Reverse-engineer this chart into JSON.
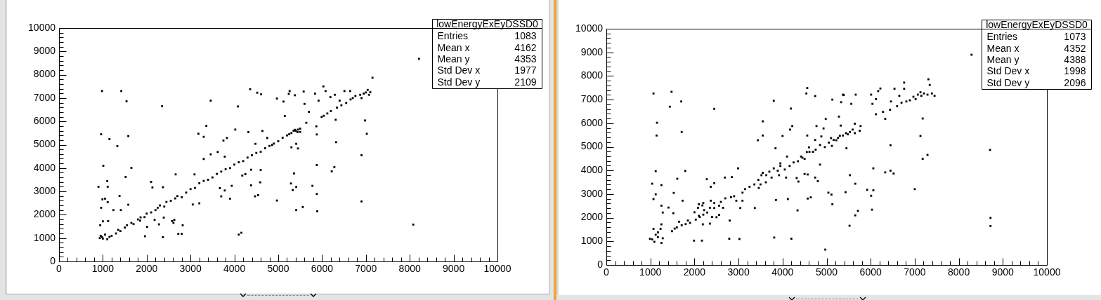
{
  "chart_data": [
    {
      "type": "scatter",
      "color": "#000000",
      "marker": "square",
      "annotations": [
        "lowEnergyExEyDSSD0",
        "Entries 1083",
        "Mean x 4162",
        "Mean y 4353",
        "Std Dev x 1977",
        "Std Dev y 2109"
      ],
      "xlim": [
        0,
        10000
      ],
      "ylim": [
        0,
        10000
      ],
      "xticks": [
        0,
        {
          "value": 200,
          "label": null
        },
        {
          "value": 400,
          "label": null
        },
        {
          "value": 600,
          "label": null
        },
        {
          "value": 800,
          "label": null
        },
        1000,
        {
          "value": 1200,
          "label": null
        },
        {
          "value": 1400,
          "label": null
        },
        {
          "value": 1600,
          "label": null
        },
        {
          "value": 1800,
          "label": null
        },
        2000,
        {
          "value": 2200,
          "label": null
        },
        {
          "value": 2400,
          "label": null
        },
        {
          "value": 2600,
          "label": null
        },
        {
          "value": 2800,
          "label": null
        },
        3000,
        {
          "value": 3200,
          "label": null
        },
        {
          "value": 3400,
          "label": null
        },
        {
          "value": 3600,
          "label": null
        },
        {
          "value": 3800,
          "label": null
        },
        4000,
        {
          "value": 4200,
          "label": null
        },
        {
          "value": 4400,
          "label": null
        },
        {
          "value": 4600,
          "label": null
        },
        {
          "value": 4800,
          "label": null
        },
        5000,
        {
          "value": 5200,
          "label": null
        },
        {
          "value": 5400,
          "label": null
        },
        {
          "value": 5600,
          "label": null
        },
        {
          "value": 5800,
          "label": null
        },
        6000,
        {
          "value": 6200,
          "label": null
        },
        {
          "value": 6400,
          "label": null
        },
        {
          "value": 6600,
          "label": null
        },
        {
          "value": 6800,
          "label": null
        },
        7000,
        {
          "value": 7200,
          "label": null
        },
        {
          "value": 7400,
          "label": null
        },
        {
          "value": 7600,
          "label": null
        },
        {
          "value": 7800,
          "label": null
        },
        8000,
        {
          "value": 8200,
          "label": null
        },
        {
          "value": 8400,
          "label": null
        },
        {
          "value": 8600,
          "label": null
        },
        {
          "value": 8800,
          "label": null
        },
        9000,
        {
          "value": 9200,
          "label": null
        },
        {
          "value": 9400,
          "label": null
        },
        {
          "value": 9600,
          "label": null
        },
        {
          "value": 9800,
          "label": null
        },
        10000
      ],
      "yticks": [
        0,
        {
          "value": 200,
          "label": null
        },
        {
          "value": 400,
          "label": null
        },
        {
          "value": 600,
          "label": null
        },
        {
          "value": 800,
          "label": null
        },
        1000,
        {
          "value": 1200,
          "label": null
        },
        {
          "value": 1400,
          "label": null
        },
        {
          "value": 1600,
          "label": null
        },
        {
          "value": 1800,
          "label": null
        },
        2000,
        {
          "value": 2200,
          "label": null
        },
        {
          "value": 2400,
          "label": null
        },
        {
          "value": 2600,
          "label": null
        },
        {
          "value": 2800,
          "label": null
        },
        3000,
        {
          "value": 3200,
          "label": null
        },
        {
          "value": 3400,
          "label": null
        },
        {
          "value": 3600,
          "label": null
        },
        {
          "value": 3800,
          "label": null
        },
        4000,
        {
          "value": 4200,
          "label": null
        },
        {
          "value": 4400,
          "label": null
        },
        {
          "value": 4600,
          "label": null
        },
        {
          "value": 4800,
          "label": null
        },
        5000,
        {
          "value": 5200,
          "label": null
        },
        {
          "value": 5400,
          "label": null
        },
        {
          "value": 5600,
          "label": null
        },
        {
          "value": 5800,
          "label": null
        },
        6000,
        {
          "value": 6200,
          "label": null
        },
        {
          "value": 6400,
          "label": null
        },
        {
          "value": 6600,
          "label": null
        },
        {
          "value": 6800,
          "label": null
        },
        7000,
        {
          "value": 7200,
          "label": null
        },
        {
          "value": 7400,
          "label": null
        },
        {
          "value": 7600,
          "label": null
        },
        {
          "value": 7800,
          "label": null
        },
        8000,
        {
          "value": 8200,
          "label": null
        },
        {
          "value": 8400,
          "label": null
        },
        {
          "value": 8600,
          "label": null
        },
        {
          "value": 8800,
          "label": null
        },
        9000,
        {
          "value": 9200,
          "label": null
        },
        {
          "value": 9400,
          "label": null
        },
        {
          "value": 9600,
          "label": null
        },
        {
          "value": 9800,
          "label": null
        },
        10000
      ],
      "x": [
        980,
        1420,
        1540,
        2350,
        960,
        1580,
        1150,
        1330,
        1010,
        1650,
        1520,
        1100,
        2100,
        2130,
        900,
        1110,
        1380,
        990,
        1050,
        1110,
        960,
        1240,
        1580,
        1410,
        940,
        1000,
        1120,
        2370,
        2800,
        2720,
        1960,
        2580,
        2610,
        2820,
        4100,
        4160,
        4970,
        4470,
        4540,
        3900,
        3700,
        3050,
        3200,
        5330,
        5290,
        5360,
        4970,
        5120,
        4360,
        4520,
        4610,
        5240,
        4080,
        5150,
        3460,
        3360,
        3180,
        3300,
        2660,
        3090,
        2370,
        4380,
        4600,
        4180,
        4250,
        4380,
        4590,
        4020,
        3750,
        3830,
        930,
        950,
        980,
        1000,
        1050,
        1100,
        1150,
        1200,
        1300,
        1350,
        1400,
        1500,
        1550,
        1650,
        1700,
        1800,
        1850,
        1950,
        2000,
        2100,
        2200,
        2250,
        2300,
        2400,
        2450,
        2550,
        2650,
        2700,
        2800,
        2900,
        3000,
        3100,
        3200,
        3300,
        3400,
        3500,
        3600,
        3700,
        3800,
        3900,
        4000,
        4100,
        4200,
        4300,
        4400,
        4500,
        4600,
        4700,
        4800,
        4900,
        5000,
        5100,
        5200,
        5300,
        5400,
        5450,
        5350,
        5500,
        2180,
        2390,
        2630,
        2280,
        2010,
        1860,
        3670,
        3780,
        3940,
        4640,
        4320,
        4750,
        4860,
        4480,
        3460,
        3620,
        3780,
        3300,
        8210,
        7150,
        6980,
        7020,
        6320,
        6900,
        5880,
        6280,
        6220,
        5410,
        5780,
        5880,
        6900,
        5410,
        5560,
        5890,
        8080,
        5300,
        5450,
        5410,
        5880,
        5870,
        5700,
        5600,
        5640,
        6310,
        6760,
        6870,
        6950,
        7000,
        7040,
        7070,
        6650,
        6550,
        6440,
        6340,
        6200,
        6120,
        6040,
        5990,
        7100,
        6900,
        6700,
        5380,
        5440,
        5500,
        5250,
        5840,
        6030,
        6080,
        5920,
        6190,
        6290,
        6510,
        6640,
        6400,
        5580,
        5380,
        5260
      ],
      "values": [
        7300,
        7300,
        6860,
        6650,
        5450,
        5370,
        5240,
        4940,
        4100,
        4010,
        3620,
        3440,
        3410,
        3170,
        3200,
        3200,
        2810,
        2660,
        2690,
        2540,
        2300,
        2200,
        2430,
        2200,
        1550,
        1720,
        1730,
        1040,
        1180,
        1180,
        1080,
        1730,
        1650,
        1550,
        1150,
        1230,
        2610,
        2790,
        2840,
        2690,
        2790,
        2440,
        2490,
        3060,
        3340,
        3770,
        6980,
        6850,
        7380,
        7230,
        7160,
        7180,
        6640,
        6230,
        6890,
        5810,
        5470,
        5340,
        3730,
        3730,
        3180,
        3930,
        3920,
        3680,
        3740,
        3260,
        3390,
        5650,
        5180,
        5290,
        1000,
        1100,
        1050,
        980,
        1150,
        950,
        1050,
        1100,
        1200,
        1350,
        1300,
        1450,
        1550,
        1650,
        1600,
        1800,
        1750,
        1900,
        2050,
        2100,
        2200,
        2300,
        2400,
        2350,
        2550,
        2600,
        2700,
        2800,
        2750,
        2950,
        3100,
        3150,
        3350,
        3450,
        3500,
        3600,
        3750,
        3850,
        3950,
        4000,
        4150,
        4250,
        4300,
        4450,
        4550,
        4650,
        4700,
        4850,
        4950,
        5050,
        5150,
        5300,
        5400,
        5500,
        5600,
        5650,
        5600,
        5550,
        1780,
        1880,
        1780,
        1590,
        1480,
        1890,
        3140,
        3040,
        3240,
        5590,
        5540,
        5290,
        4990,
        5040,
        4590,
        4690,
        4490,
        4390,
        8680,
        7870,
        6040,
        5470,
        5110,
        4550,
        4130,
        4040,
        3860,
        3190,
        3240,
        2890,
        2570,
        2200,
        2330,
        2150,
        1580,
        4890,
        4840,
        5040,
        5440,
        5790,
        6410,
        6750,
        5940,
        6070,
        7090,
        7140,
        7190,
        7240,
        7350,
        7140,
        6940,
        6790,
        6690,
        6590,
        6440,
        6340,
        6240,
        6190,
        7250,
        7000,
        7000,
        5640,
        5540,
        5690,
        5450,
        7190,
        7500,
        7300,
        6890,
        7040,
        7140,
        7300,
        7300,
        6890,
        7280,
        7120,
        7300
      ]
    },
    {
      "type": "scatter",
      "color": "#000000",
      "marker": "square",
      "annotations": [
        "lowEnergyExEyDSSD0",
        "Entries 1073",
        "Mean x 4352",
        "Mean y 4388",
        "Std Dev x 1998",
        "Std Dev y 2096"
      ],
      "xlim": [
        0,
        10000
      ],
      "ylim": [
        0,
        10000
      ],
      "xticks": [
        0,
        {
          "value": 200,
          "label": null
        },
        {
          "value": 400,
          "label": null
        },
        {
          "value": 600,
          "label": null
        },
        {
          "value": 800,
          "label": null
        },
        1000,
        {
          "value": 1200,
          "label": null
        },
        {
          "value": 1400,
          "label": null
        },
        {
          "value": 1600,
          "label": null
        },
        {
          "value": 1800,
          "label": null
        },
        2000,
        {
          "value": 2200,
          "label": null
        },
        {
          "value": 2400,
          "label": null
        },
        {
          "value": 2600,
          "label": null
        },
        {
          "value": 2800,
          "label": null
        },
        3000,
        {
          "value": 3200,
          "label": null
        },
        {
          "value": 3400,
          "label": null
        },
        {
          "value": 3600,
          "label": null
        },
        {
          "value": 3800,
          "label": null
        },
        4000,
        {
          "value": 4200,
          "label": null
        },
        {
          "value": 4400,
          "label": null
        },
        {
          "value": 4600,
          "label": null
        },
        {
          "value": 4800,
          "label": null
        },
        5000,
        {
          "value": 5200,
          "label": null
        },
        {
          "value": 5400,
          "label": null
        },
        {
          "value": 5600,
          "label": null
        },
        {
          "value": 5800,
          "label": null
        },
        6000,
        {
          "value": 6200,
          "label": null
        },
        {
          "value": 6400,
          "label": null
        },
        {
          "value": 6600,
          "label": null
        },
        {
          "value": 6800,
          "label": null
        },
        7000,
        {
          "value": 7200,
          "label": null
        },
        {
          "value": 7400,
          "label": null
        },
        {
          "value": 7600,
          "label": null
        },
        {
          "value": 7800,
          "label": null
        },
        8000,
        {
          "value": 8200,
          "label": null
        },
        {
          "value": 8400,
          "label": null
        },
        {
          "value": 8600,
          "label": null
        },
        {
          "value": 8800,
          "label": null
        },
        9000,
        {
          "value": 9200,
          "label": null
        },
        {
          "value": 9400,
          "label": null
        },
        {
          "value": 9600,
          "label": null
        },
        {
          "value": 9800,
          "label": null
        },
        10000
      ],
      "yticks": [
        0,
        {
          "value": 200,
          "label": null
        },
        {
          "value": 400,
          "label": null
        },
        {
          "value": 600,
          "label": null
        },
        {
          "value": 800,
          "label": null
        },
        1000,
        {
          "value": 1200,
          "label": null
        },
        {
          "value": 1400,
          "label": null
        },
        {
          "value": 1600,
          "label": null
        },
        {
          "value": 1800,
          "label": null
        },
        2000,
        {
          "value": 2200,
          "label": null
        },
        {
          "value": 2400,
          "label": null
        },
        {
          "value": 2600,
          "label": null
        },
        {
          "value": 2800,
          "label": null
        },
        3000,
        {
          "value": 3200,
          "label": null
        },
        {
          "value": 3400,
          "label": null
        },
        {
          "value": 3600,
          "label": null
        },
        {
          "value": 3800,
          "label": null
        },
        4000,
        {
          "value": 4200,
          "label": null
        },
        {
          "value": 4400,
          "label": null
        },
        {
          "value": 4600,
          "label": null
        },
        {
          "value": 4800,
          "label": null
        },
        5000,
        {
          "value": 5200,
          "label": null
        },
        {
          "value": 5400,
          "label": null
        },
        {
          "value": 5600,
          "label": null
        },
        {
          "value": 5800,
          "label": null
        },
        6000,
        {
          "value": 6200,
          "label": null
        },
        {
          "value": 6400,
          "label": null
        },
        {
          "value": 6600,
          "label": null
        },
        {
          "value": 6800,
          "label": null
        },
        7000,
        {
          "value": 7200,
          "label": null
        },
        {
          "value": 7400,
          "label": null
        },
        {
          "value": 7600,
          "label": null
        },
        {
          "value": 7800,
          "label": null
        },
        8000,
        {
          "value": 8200,
          "label": null
        },
        {
          "value": 8400,
          "label": null
        },
        {
          "value": 8600,
          "label": null
        },
        {
          "value": 8800,
          "label": null
        },
        9000,
        {
          "value": 9200,
          "label": null
        },
        {
          "value": 9400,
          "label": null
        },
        {
          "value": 9600,
          "label": null
        },
        {
          "value": 9800,
          "label": null
        },
        10000
      ],
      "x": [
        1070,
        1480,
        1700,
        1440,
        2450,
        1150,
        1140,
        1710,
        1120,
        1790,
        1610,
        1040,
        1250,
        1530,
        1120,
        1070,
        1250,
        1280,
        1410,
        1520,
        1730,
        2280,
        2370,
        2450,
        2990,
        2690,
        2850,
        1990,
        2170,
        2790,
        3020,
        3810,
        4200,
        4970,
        3370,
        4340,
        3850,
        4120,
        4570,
        4640,
        5040,
        5110,
        5130,
        5430,
        5520,
        4320,
        4360,
        4500,
        4570,
        4740,
        4800,
        4850,
        3800,
        4190,
        4560,
        4540,
        4740,
        5130,
        5330,
        5390,
        4980,
        5280,
        5320,
        3550,
        3550,
        3440,
        4220,
        4170,
        4000,
        3840,
        1040,
        1090,
        1170,
        1250,
        1280,
        1120,
        1170,
        1230,
        1070,
        1250,
        990,
        1490,
        1550,
        1600,
        1710,
        1650,
        1800,
        1850,
        1900,
        2030,
        2100,
        2000,
        2200,
        2290,
        2350,
        2400,
        2450,
        2560,
        2600,
        2650,
        2700,
        2830,
        2900,
        2950,
        3090,
        3150,
        3250,
        3360,
        3450,
        3500,
        3550,
        3630,
        3700,
        3750,
        3800,
        3890,
        3950,
        4050,
        4160,
        4250,
        4350,
        4420,
        4500,
        4550,
        4690,
        4600,
        4750,
        4850,
        4960,
        5050,
        5100,
        5220,
        5300,
        5440,
        2100,
        2200,
        2190,
        2350,
        2500,
        2800,
        2080,
        2180,
        2220,
        2120,
        2370,
        2450,
        2560,
        3040,
        3090,
        3460,
        3520,
        3620,
        3920,
        4080,
        3950,
        4100,
        4450,
        4610,
        4740,
        4560,
        4880,
        4930,
        4770,
        5530,
        5480,
        5590,
        5370,
        5260,
        5640,
        5750,
        5160,
        5770,
        5640,
        5450,
        5120,
        6120,
        6280,
        6330,
        6440,
        6600,
        6700,
        6810,
        6890,
        6970,
        7070,
        7150,
        7210,
        7290,
        7390,
        7450,
        7130,
        7020,
        6010,
        6170,
        6220,
        6120,
        6040,
        6460,
        6760,
        6760,
        7310,
        7340,
        6540,
        6650,
        5370,
        5560,
        5660,
        8290,
        8710,
        8720,
        8720,
        7180,
        7130,
        7290,
        7180,
        6450,
        6060,
        6330,
        6450,
        6520,
        5530,
        5650,
        5920,
        6060,
        7000,
        6010,
        5710,
        5650,
        6030
      ],
      "values": [
        7260,
        7330,
        6920,
        6700,
        6610,
        6020,
        5480,
        5630,
        3970,
        3980,
        3650,
        3440,
        3380,
        3050,
        2990,
        2790,
        2510,
        2220,
        2430,
        2190,
        2720,
        3630,
        3310,
        3460,
        4090,
        3700,
        3720,
        1030,
        1030,
        1110,
        1100,
        1160,
        1110,
        650,
        2410,
        2310,
        2750,
        2790,
        2810,
        2860,
        3060,
        2980,
        2570,
        3080,
        1660,
        3680,
        3530,
        3850,
        3830,
        3700,
        3550,
        4250,
        6950,
        6620,
        7490,
        7260,
        7150,
        7000,
        6890,
        7190,
        6180,
        6280,
        5900,
        6080,
        5480,
        5280,
        5880,
        5730,
        5460,
        4940,
        1080,
        980,
        1180,
        930,
        1130,
        1280,
        1380,
        1530,
        1530,
        1720,
        1110,
        1430,
        1540,
        1590,
        1680,
        1830,
        1730,
        1880,
        1780,
        1920,
        2080,
        2230,
        2130,
        2220,
        2420,
        2030,
        2620,
        2510,
        2670,
        2420,
        2820,
        2870,
        2910,
        2720,
        3060,
        3210,
        3310,
        3410,
        3600,
        3410,
        3900,
        3800,
        3950,
        3700,
        4090,
        3990,
        4190,
        4040,
        4190,
        4340,
        4390,
        4590,
        4490,
        4780,
        4790,
        4980,
        4880,
        5080,
        4990,
        5180,
        5370,
        5280,
        5470,
        5580,
        2570,
        2620,
        1720,
        1750,
        2020,
        1880,
        2420,
        2520,
        2320,
        2030,
        2720,
        2410,
        2120,
        2410,
        2720,
        3260,
        3800,
        3500,
        3800,
        3700,
        4300,
        4590,
        4540,
        4790,
        5290,
        5480,
        5440,
        5780,
        5880,
        5630,
        5530,
        5730,
        5480,
        5380,
        5580,
        5680,
        5290,
        5880,
        5980,
        4940,
        5040,
        6380,
        6480,
        6180,
        6570,
        6720,
        6870,
        6920,
        6970,
        7120,
        7210,
        7160,
        7260,
        7210,
        7260,
        7160,
        7310,
        7020,
        7210,
        7360,
        7470,
        7020,
        6820,
        6920,
        7720,
        7460,
        7860,
        7620,
        7460,
        7160,
        7210,
        6820,
        7210,
        8900,
        4870,
        1990,
        1650,
        6200,
        5460,
        4660,
        4490,
        5070,
        4090,
        3920,
        3990,
        3870,
        3800,
        3440,
        3180,
        3160,
        3210,
        2930,
        2290,
        2100,
        2340
      ]
    }
  ]
}
